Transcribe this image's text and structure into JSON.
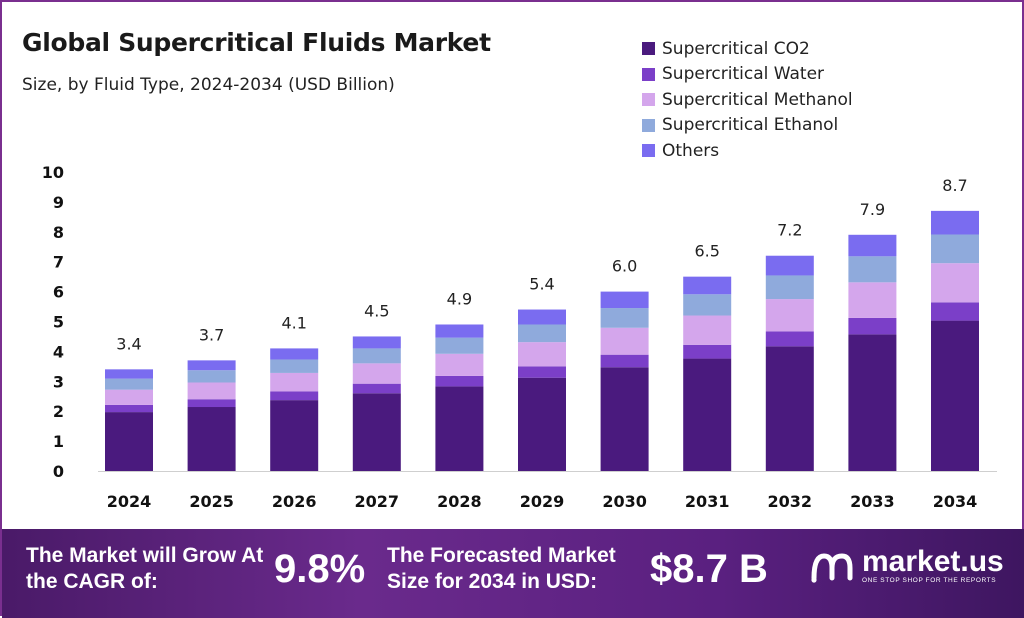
{
  "header": {
    "title": "Global Supercritical Fluids Market",
    "subtitle": "Size, by Fluid Type, 2024-2034 (USD Billion)"
  },
  "colors": {
    "co2": "#4a1a7e",
    "water": "#7b3fc8",
    "methanol": "#d4a6ec",
    "ethanol": "#8faadc",
    "others": "#7a6cf0",
    "footer": "#5a2080"
  },
  "chart_data": {
    "type": "bar",
    "stacked": true,
    "title": "Global Supercritical Fluids Market",
    "subtitle": "Size, by Fluid Type, 2024-2034 (USD Billion)",
    "xlabel": "",
    "ylabel": "",
    "ylim": [
      0,
      10
    ],
    "yticks": [
      0,
      1,
      2,
      3,
      4,
      5,
      6,
      7,
      8,
      9,
      10
    ],
    "categories": [
      "2024",
      "2025",
      "2026",
      "2027",
      "2028",
      "2029",
      "2030",
      "2031",
      "2032",
      "2033",
      "2034"
    ],
    "totals": [
      "3.4",
      "3.7",
      "4.1",
      "4.5",
      "4.9",
      "5.4",
      "6.0",
      "6.5",
      "7.2",
      "7.9",
      "8.7"
    ],
    "series": [
      {
        "name": "Supercritical CO2",
        "color": "#4a1a7e",
        "values": [
          1.97,
          2.14,
          2.37,
          2.6,
          2.83,
          3.12,
          3.47,
          3.76,
          4.17,
          4.57,
          5.03
        ]
      },
      {
        "name": "Supercritical Water",
        "color": "#7b3fc8",
        "values": [
          0.24,
          0.26,
          0.29,
          0.32,
          0.35,
          0.38,
          0.42,
          0.46,
          0.5,
          0.55,
          0.61
        ]
      },
      {
        "name": "Supercritical Methanol",
        "color": "#d4a6ec",
        "values": [
          0.51,
          0.56,
          0.62,
          0.68,
          0.74,
          0.81,
          0.9,
          0.98,
          1.08,
          1.19,
          1.31
        ]
      },
      {
        "name": "Supercritical Ethanol",
        "color": "#8faadc",
        "values": [
          0.37,
          0.41,
          0.45,
          0.5,
          0.54,
          0.59,
          0.66,
          0.71,
          0.79,
          0.87,
          0.96
        ]
      },
      {
        "name": "Others",
        "color": "#7a6cf0",
        "values": [
          0.31,
          0.33,
          0.37,
          0.4,
          0.44,
          0.5,
          0.55,
          0.59,
          0.66,
          0.72,
          0.79
        ]
      }
    ],
    "legend_position": "top-right",
    "grid": false
  },
  "footer": {
    "cagr_label": "The Market will Grow At the CAGR of:",
    "cagr_value": "9.8%",
    "forecast_label": "The Forecasted Market Size for 2034 in USD:",
    "forecast_value": "$8.7 B",
    "logo_name": "market.us",
    "logo_tagline": "ONE STOP SHOP FOR THE REPORTS"
  }
}
